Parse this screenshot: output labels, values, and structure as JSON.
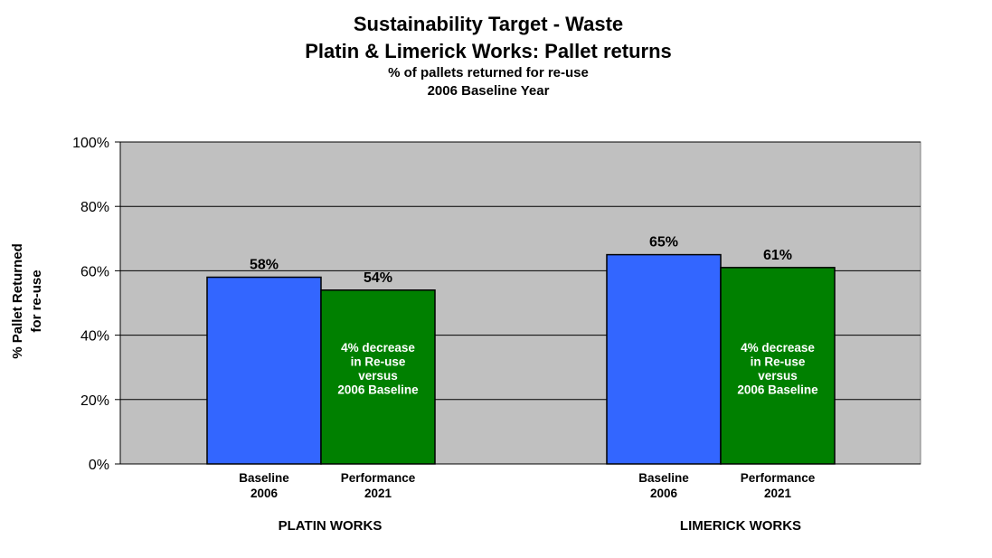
{
  "chart_data": {
    "type": "bar",
    "title": "Sustainability Target - Waste",
    "subtitle": "Platin & Limerick Works: Pallet returns",
    "subtitle2": "% of pallets returned for re-use",
    "subtitle3": "2006 Baseline Year",
    "ylabel": [
      "% Pallet Returned",
      "for re-use"
    ],
    "ylim": [
      0,
      100
    ],
    "yticks": [
      0,
      20,
      40,
      60,
      80,
      100
    ],
    "ytick_labels": [
      "0%",
      "20%",
      "40%",
      "60%",
      "80%",
      "100%"
    ],
    "grid": true,
    "groups": [
      {
        "name": "PLATIN WORKS",
        "bars": [
          {
            "label": [
              "Baseline",
              "2006"
            ],
            "value": 58,
            "value_label": "58%",
            "color": "#3366ff"
          },
          {
            "label": [
              "Performance",
              "2021"
            ],
            "value": 54,
            "value_label": "54%",
            "color": "#008000",
            "annotation": [
              "4% decrease",
              "in Re-use",
              "versus",
              "2006 Baseline"
            ]
          }
        ]
      },
      {
        "name": "LIMERICK WORKS",
        "bars": [
          {
            "label": [
              "Baseline",
              "2006"
            ],
            "value": 65,
            "value_label": "65%",
            "color": "#3366ff"
          },
          {
            "label": [
              "Performance",
              "2021"
            ],
            "value": 61,
            "value_label": "61%",
            "color": "#008000",
            "annotation": [
              "4% decrease",
              "in Re-use",
              "versus",
              "2006 Baseline"
            ]
          }
        ]
      }
    ],
    "plot_background": "#c0c0c0"
  }
}
